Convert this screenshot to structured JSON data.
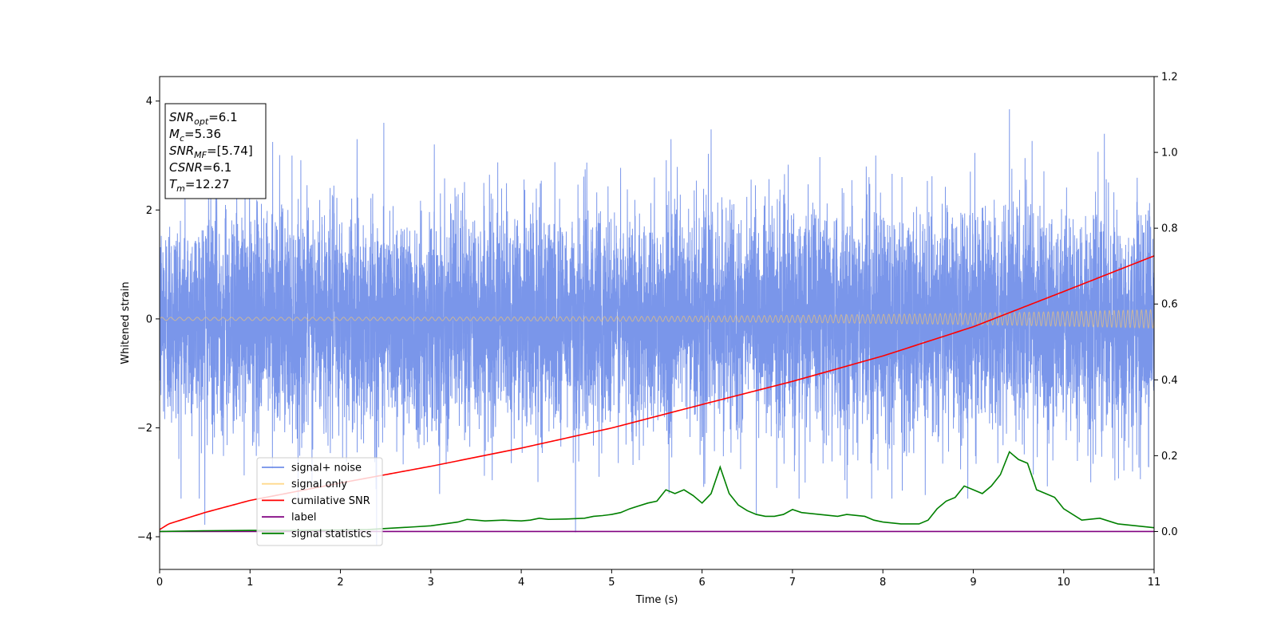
{
  "chart_data": {
    "type": "line",
    "title": "",
    "xlabel": "Time (s)",
    "ylabel": "Whitened strain",
    "xlim": [
      0,
      11
    ],
    "ylim": [
      -4.6,
      4.45
    ],
    "y2lim": [
      -0.1,
      1.2
    ],
    "xticks": [
      "0",
      "1",
      "2",
      "3",
      "4",
      "5",
      "6",
      "7",
      "8",
      "9",
      "10",
      "11"
    ],
    "yticks": [
      "−4",
      "−2",
      "0",
      "2",
      "4"
    ],
    "y2ticks": [
      "0.0",
      "0.2",
      "0.4",
      "0.6",
      "0.8",
      "1.0",
      "1.2"
    ],
    "grid": false,
    "legend_position": "lower-left",
    "annotation": {
      "lines": [
        {
          "base": "SNR",
          "sub": "opt",
          "value": "=6.1"
        },
        {
          "base": "M",
          "sub": "c",
          "value": "=5.36"
        },
        {
          "base": "SNR",
          "sub": "MF",
          "value": "=[5.74]"
        },
        {
          "base": "CSNR",
          "sub": "",
          "value": "=6.1"
        },
        {
          "base": "T",
          "sub": "m",
          "value": "=12.27"
        }
      ]
    },
    "series": [
      {
        "name": "signal+ noise",
        "color": "#4169e1",
        "axis": "left",
        "kind": "noise",
        "sigma": 1.0,
        "spikes": [
          [
            0.5,
            -3.78
          ],
          [
            1.25,
            3.25
          ],
          [
            2.4,
            -4.15
          ],
          [
            2.48,
            3.6
          ],
          [
            4.6,
            -3.92
          ],
          [
            6.1,
            3.48
          ],
          [
            6.6,
            -3.6
          ],
          [
            9.4,
            3.85
          ],
          [
            10.45,
            3.4
          ],
          [
            10.3,
            -3.0
          ]
        ]
      },
      {
        "name": "signal only",
        "color": "#ffcc66",
        "axis": "left",
        "kind": "chirp",
        "amp_start": 0.03,
        "amp_end": 0.17,
        "f_start": 10,
        "f_end": 20
      },
      {
        "name": "cumilative SNR",
        "color": "#ff0000",
        "axis": "right",
        "x": [
          0,
          0.1,
          0.5,
          1,
          2,
          3,
          4,
          5,
          6,
          7,
          8,
          9,
          10,
          10.5,
          11
        ],
        "y": [
          0.005,
          0.02,
          0.05,
          0.082,
          0.128,
          0.172,
          0.22,
          0.273,
          0.335,
          0.396,
          0.463,
          0.54,
          0.633,
          0.68,
          0.727
        ]
      },
      {
        "name": "label",
        "color": "#800080",
        "axis": "right",
        "x": [
          0,
          11
        ],
        "y": [
          0.0,
          0.0
        ]
      },
      {
        "name": "signal statistics",
        "color": "#008000",
        "axis": "right",
        "x": [
          0,
          0.5,
          1,
          1.5,
          2,
          2.3,
          2.5,
          2.8,
          3,
          3.3,
          3.4,
          3.5,
          3.6,
          3.8,
          4,
          4.1,
          4.2,
          4.3,
          4.5,
          4.7,
          4.8,
          4.9,
          5.0,
          5.1,
          5.2,
          5.4,
          5.5,
          5.6,
          5.7,
          5.8,
          5.9,
          6.0,
          6.1,
          6.2,
          6.3,
          6.4,
          6.5,
          6.6,
          6.7,
          6.8,
          6.9,
          7.0,
          7.1,
          7.3,
          7.5,
          7.6,
          7.8,
          7.9,
          8.0,
          8.2,
          8.4,
          8.5,
          8.6,
          8.7,
          8.8,
          8.9,
          9.0,
          9.1,
          9.2,
          9.3,
          9.4,
          9.5,
          9.6,
          9.7,
          9.8,
          9.9,
          10.0,
          10.2,
          10.4,
          10.6,
          10.8,
          11
        ],
        "y": [
          0.0,
          0.002,
          0.003,
          0.003,
          0.004,
          0.005,
          0.008,
          0.012,
          0.015,
          0.025,
          0.032,
          0.03,
          0.028,
          0.03,
          0.028,
          0.03,
          0.035,
          0.032,
          0.033,
          0.035,
          0.04,
          0.042,
          0.045,
          0.05,
          0.06,
          0.075,
          0.08,
          0.11,
          0.1,
          0.11,
          0.095,
          0.075,
          0.1,
          0.17,
          0.1,
          0.07,
          0.055,
          0.045,
          0.04,
          0.04,
          0.045,
          0.058,
          0.05,
          0.045,
          0.04,
          0.045,
          0.04,
          0.03,
          0.025,
          0.02,
          0.02,
          0.03,
          0.06,
          0.08,
          0.09,
          0.12,
          0.11,
          0.1,
          0.12,
          0.15,
          0.21,
          0.19,
          0.18,
          0.11,
          0.1,
          0.09,
          0.06,
          0.03,
          0.035,
          0.02,
          0.015,
          0.01
        ]
      }
    ]
  }
}
